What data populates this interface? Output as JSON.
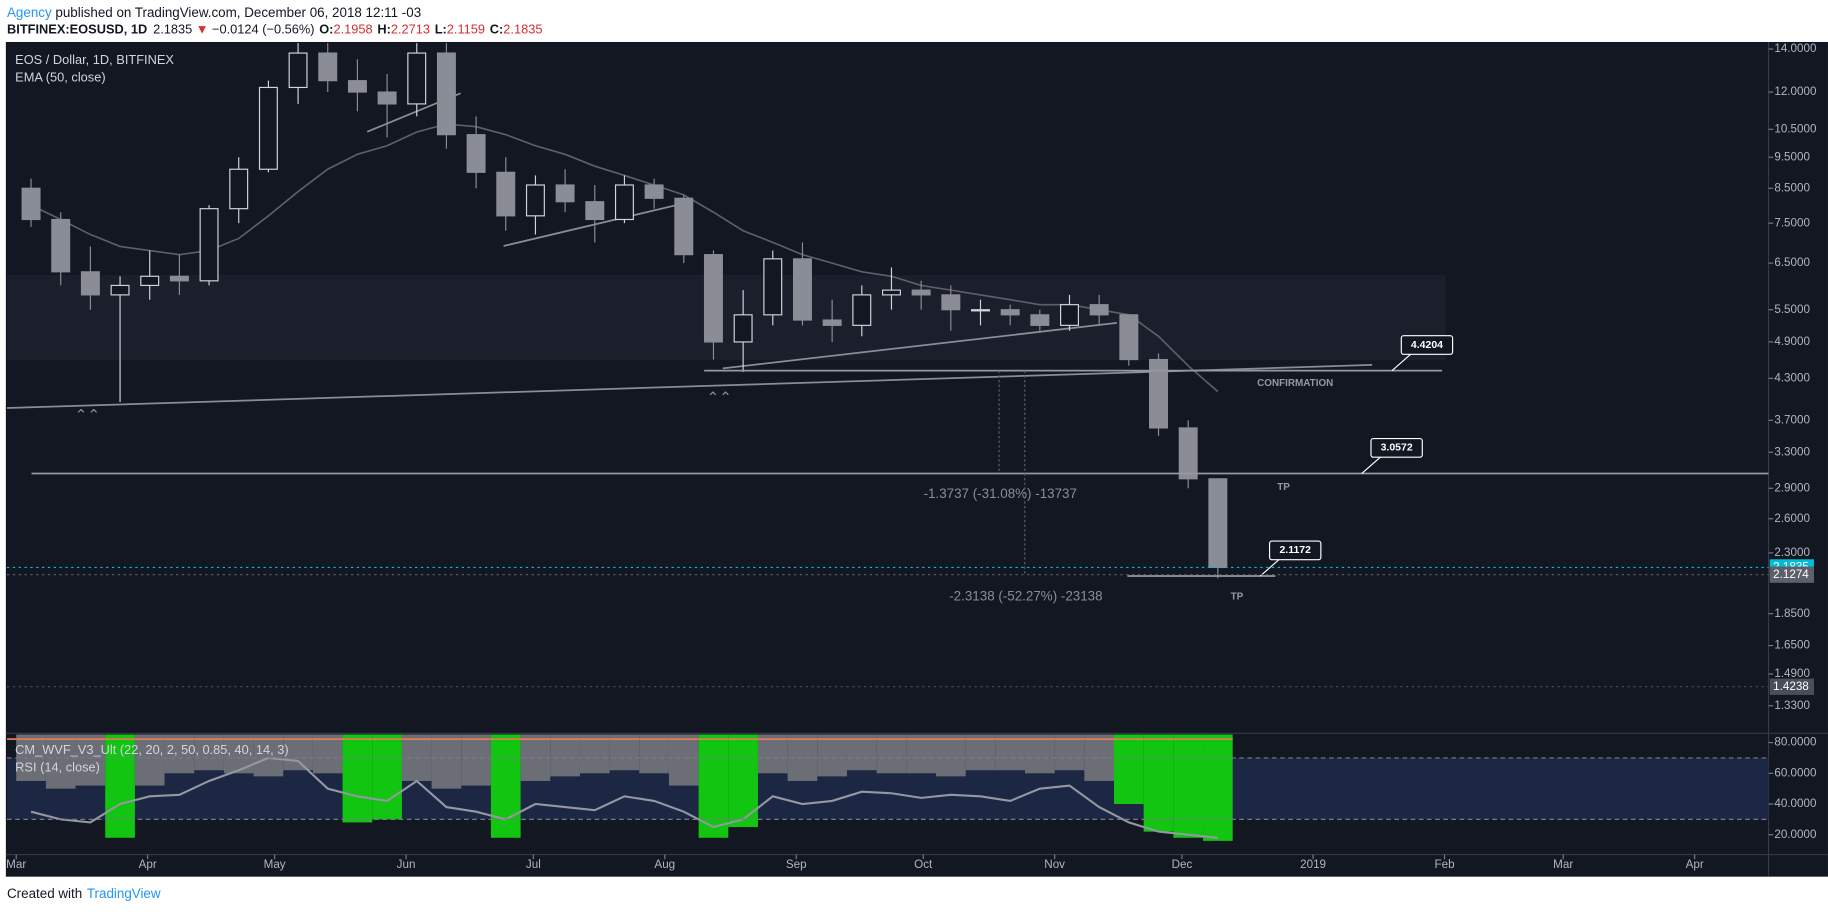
{
  "header": {
    "author": "Agency",
    "published": " published on TradingView.com, December 06, 2018 12:11 -03",
    "symbol": "BITFINEX:EOSUSD, 1D",
    "last": "2.1835",
    "arrow": "▼",
    "change": "−0.0124 (−0.56%)",
    "o_label": "O:",
    "open": "2.1958",
    "h_label": "H:",
    "high": "2.2713",
    "l_label": "L:",
    "low": "2.1159",
    "c_label": "C:",
    "close": "2.1835"
  },
  "footer": {
    "created": "Created with",
    "brand": "TradingView"
  },
  "chart_data": [
    {
      "type": "candlestick",
      "title": "EOS / Dollar, 1D, BITFINEX",
      "log_scale": true,
      "categories": [
        null,
        null,
        null,
        null,
        null,
        null,
        null,
        null,
        null,
        null,
        null,
        null,
        null,
        null,
        null,
        null,
        null,
        null,
        null,
        null,
        null,
        null,
        null,
        null,
        null,
        null,
        null,
        null,
        null,
        null,
        null,
        null,
        null,
        null,
        null,
        null,
        null,
        null,
        null,
        null,
        null
      ],
      "open": [
        8.5,
        7.6,
        6.3,
        5.8,
        6.0,
        6.2,
        6.1,
        7.9,
        9.1,
        12.2,
        13.8,
        12.5,
        12.0,
        11.5,
        13.8,
        10.3,
        9.0,
        7.7,
        8.6,
        8.1,
        7.6,
        8.6,
        8.2,
        6.7,
        4.9,
        5.4,
        6.6,
        5.3,
        5.2,
        5.8,
        5.9,
        5.8,
        5.5,
        5.5,
        5.4,
        5.2,
        5.6,
        5.4,
        4.6,
        3.6,
        3.0
      ],
      "high": [
        8.8,
        7.8,
        6.9,
        6.2,
        6.8,
        6.7,
        8.0,
        9.5,
        12.5,
        14.5,
        15,
        13.5,
        12.8,
        14.5,
        14.5,
        11.0,
        9.5,
        8.9,
        9.1,
        8.6,
        8.9,
        8.8,
        8.3,
        6.8,
        5.9,
        6.8,
        7.0,
        5.7,
        6.0,
        6.4,
        6.1,
        6.0,
        5.7,
        5.6,
        5.5,
        5.8,
        5.8,
        5.4,
        4.7,
        3.7,
        3.0
      ],
      "low": [
        7.4,
        6.0,
        5.5,
        3.95,
        5.7,
        5.8,
        6.0,
        7.5,
        9.0,
        11.5,
        12.0,
        11.2,
        10.2,
        11.0,
        9.8,
        8.5,
        7.3,
        7.2,
        7.8,
        7.0,
        7.5,
        7.9,
        6.5,
        4.6,
        4.4,
        5.2,
        5.2,
        4.9,
        5.0,
        5.5,
        5.5,
        5.1,
        5.2,
        5.2,
        5.1,
        5.1,
        5.2,
        4.5,
        3.5,
        2.9,
        2.1
      ],
      "close": [
        7.6,
        6.3,
        5.8,
        6.0,
        6.2,
        6.1,
        7.9,
        9.1,
        12.2,
        13.8,
        12.5,
        12.0,
        11.5,
        13.8,
        10.3,
        9.0,
        7.7,
        8.6,
        8.1,
        7.6,
        8.6,
        8.2,
        6.7,
        4.9,
        5.4,
        6.6,
        5.3,
        5.2,
        5.8,
        5.9,
        5.8,
        5.5,
        5.5,
        5.4,
        5.2,
        5.6,
        5.4,
        4.6,
        3.6,
        3.0,
        2.1835
      ],
      "up_color": "#d1d4dc",
      "down_color": "#8a8d96",
      "series": [
        {
          "name": "EMA (50, close)",
          "color": "#5d606b",
          "values": [
            8.0,
            7.6,
            7.2,
            6.9,
            6.8,
            6.7,
            6.8,
            7.1,
            7.7,
            8.4,
            9.1,
            9.6,
            9.9,
            10.4,
            10.7,
            10.6,
            10.3,
            9.9,
            9.6,
            9.2,
            8.9,
            8.6,
            8.3,
            7.8,
            7.3,
            7.0,
            6.7,
            6.5,
            6.3,
            6.2,
            6.0,
            5.9,
            5.8,
            5.7,
            5.6,
            5.6,
            5.5,
            5.4,
            5.0,
            4.5,
            4.1
          ]
        }
      ],
      "xlim": [
        -0.31,
        59.06
      ],
      "xticks": [
        {
          "value": 0,
          "label": "Mar"
        },
        {
          "value": 4.43,
          "label": "Apr"
        },
        {
          "value": 8.71,
          "label": "May"
        },
        {
          "value": 13.14,
          "label": "Jun"
        },
        {
          "value": 17.43,
          "label": "Jul"
        },
        {
          "value": 21.86,
          "label": "Aug"
        },
        {
          "value": 26.29,
          "label": "Sep"
        },
        {
          "value": 30.57,
          "label": "Oct"
        },
        {
          "value": 35,
          "label": "Nov"
        },
        {
          "value": 39.29,
          "label": "Dec"
        },
        {
          "value": 43.71,
          "label": "2019"
        },
        {
          "value": 48.14,
          "label": "Feb"
        },
        {
          "value": 52.14,
          "label": "Mar"
        },
        {
          "value": 56.57,
          "label": "Apr"
        }
      ],
      "ylim": [
        1.21,
        14.3
      ],
      "yticks": [
        {
          "value": 14,
          "label": "14.0000"
        },
        {
          "value": 12,
          "label": "12.0000"
        },
        {
          "value": 10.5,
          "label": "10.5000"
        },
        {
          "value": 9.5,
          "label": "9.5000"
        },
        {
          "value": 8.5,
          "label": "8.5000"
        },
        {
          "value": 7.5,
          "label": "7.5000"
        },
        {
          "value": 6.5,
          "label": "6.5000"
        },
        {
          "value": 5.5,
          "label": "5.5000"
        },
        {
          "value": 4.9,
          "label": "4.9000"
        },
        {
          "value": 4.3,
          "label": "4.3000"
        },
        {
          "value": 3.7,
          "label": "3.7000"
        },
        {
          "value": 3.3,
          "label": "3.3000"
        },
        {
          "value": 2.9,
          "label": "2.9000"
        },
        {
          "value": 2.6,
          "label": "2.6000"
        },
        {
          "value": 2.3,
          "label": "2.3000"
        },
        {
          "value": 1.85,
          "label": "1.8500"
        },
        {
          "value": 1.65,
          "label": "1.6500"
        },
        {
          "value": 1.49,
          "label": "1.4900"
        },
        {
          "value": 1.33,
          "label": "1.3300"
        }
      ],
      "price_labels": [
        {
          "value": 2.1835,
          "color": "#00bcd4"
        },
        {
          "value": 2.1274,
          "color": "#5d606b"
        },
        {
          "value": 1.4238,
          "color": "#4a4e59"
        }
      ],
      "levels": [
        4.4204,
        3.0572,
        2.1172
      ],
      "annotations": {
        "confirmation": "CONFIRMATION",
        "tp1": "TP",
        "tp2": "TP",
        "measure1": "-1.3737 (-31.08%) -13737",
        "measure2": "-2.3138 (-52.27%) -23138"
      }
    },
    {
      "type": "combo",
      "series": [
        {
          "name": "CM_WVF_V3_Ult (22, 20, 2, 50, 0.85, 40, 14, 3)",
          "kind": "bar",
          "colors": [
            "#6b6e75",
            "#6b6e75",
            "#6b6e75",
            "#11c511",
            "#6b6e75",
            "#6b6e75",
            "#6b6e75",
            "#6b6e75",
            "#6b6e75",
            "#6b6e75",
            "#6b6e75",
            "#11c511",
            "#11c511",
            "#6b6e75",
            "#6b6e75",
            "#6b6e75",
            "#11c511",
            "#6b6e75",
            "#6b6e75",
            "#6b6e75",
            "#6b6e75",
            "#6b6e75",
            "#6b6e75",
            "#11c511",
            "#11c511",
            "#6b6e75",
            "#6b6e75",
            "#6b6e75",
            "#6b6e75",
            "#6b6e75",
            "#6b6e75",
            "#6b6e75",
            "#6b6e75",
            "#6b6e75",
            "#6b6e75",
            "#6b6e75",
            "#6b6e75",
            "#11c511",
            "#11c511",
            "#11c511",
            "#11c511"
          ],
          "values": [
            55,
            50,
            52,
            18,
            52,
            60,
            62,
            60,
            58,
            62,
            60,
            28,
            30,
            55,
            50,
            52,
            18,
            55,
            58,
            60,
            62,
            60,
            52,
            18,
            25,
            60,
            55,
            58,
            62,
            60,
            60,
            58,
            62,
            62,
            60,
            62,
            55,
            40,
            22,
            18,
            16
          ]
        },
        {
          "name": "RSI (14, close)",
          "kind": "line",
          "color": "#9598a1",
          "values": [
            35,
            30,
            28,
            40,
            45,
            46,
            55,
            62,
            70,
            68,
            50,
            45,
            42,
            55,
            38,
            35,
            30,
            40,
            38,
            36,
            45,
            42,
            35,
            25,
            30,
            45,
            40,
            42,
            48,
            47,
            44,
            46,
            45,
            42,
            50,
            52,
            38,
            28,
            22,
            20,
            18
          ]
        }
      ],
      "rsi_levels": [
        30,
        70
      ],
      "ylim": [
        7.1,
        85.3
      ],
      "yticks": [
        {
          "value": 80,
          "label": "80.0000"
        },
        {
          "value": 60,
          "label": "60.0000"
        },
        {
          "value": 40,
          "label": "40.0000"
        },
        {
          "value": 20,
          "label": "20.0000"
        }
      ]
    }
  ]
}
